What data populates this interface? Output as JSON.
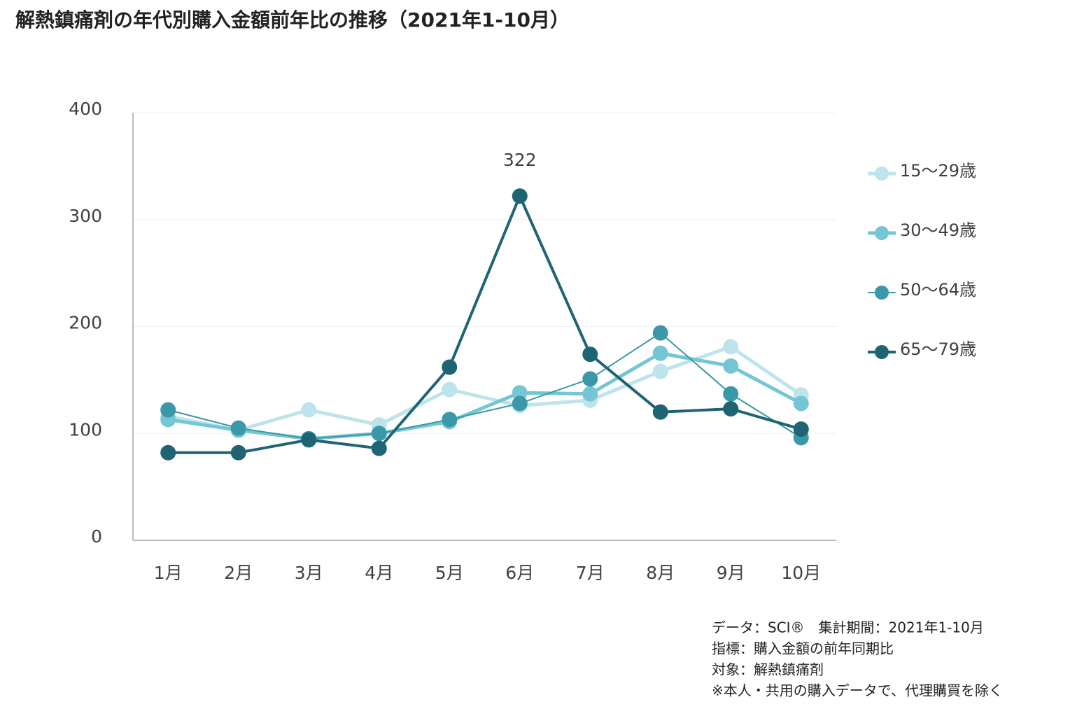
{
  "chart_data": {
    "type": "line",
    "title": "解熱鎮痛剤の年代別購入金額前年比の推移（2021年1-10月）",
    "categories": [
      "1月",
      "2月",
      "3月",
      "4月",
      "5月",
      "6月",
      "7月",
      "8月",
      "9月",
      "10月"
    ],
    "series": [
      {
        "name": "15～29歳",
        "color": "#bde3ec",
        "values": [
          116,
          103,
          122,
          108,
          141,
          126,
          131,
          158,
          181,
          136
        ]
      },
      {
        "name": "30～49歳",
        "color": "#74c6d4",
        "values": [
          113,
          103,
          95,
          100,
          111,
          138,
          137,
          175,
          163,
          128
        ]
      },
      {
        "name": "50～64歳",
        "color": "#3a98a8",
        "values": [
          122,
          105,
          95,
          100,
          113,
          128,
          151,
          194,
          137,
          96
        ]
      },
      {
        "name": "65～79歳",
        "color": "#1e6472",
        "values": [
          82,
          82,
          94,
          86,
          162,
          322,
          174,
          120,
          123,
          104
        ]
      }
    ],
    "ylim": [
      0,
      400
    ],
    "yticks": [
      0,
      100,
      200,
      300,
      400
    ],
    "grid": true,
    "legend": "right",
    "notes": [
      "データ：SCI®　集計期間：2021年1-10月",
      "指標：購入金額の前年同期比",
      "対象：解熱鎮痛剤",
      "※本人・共用の購入データで、代理購買を除く"
    ]
  }
}
